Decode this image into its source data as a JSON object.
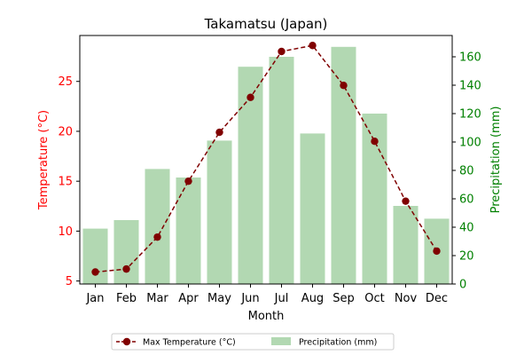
{
  "chart_data": {
    "type": "bar+line",
    "title": "Takamatsu (Japan)",
    "xlabel": "Month",
    "categories": [
      "Jan",
      "Feb",
      "Mar",
      "Apr",
      "May",
      "Jun",
      "Jul",
      "Aug",
      "Sep",
      "Oct",
      "Nov",
      "Dec"
    ],
    "series": [
      {
        "name": "Max Temperature (°C)",
        "type": "line",
        "axis": "left",
        "color": "#800000",
        "style": "dashed-with-markers",
        "values": [
          5.9,
          6.2,
          9.4,
          15.0,
          19.9,
          23.4,
          28.0,
          28.6,
          24.6,
          19.0,
          13.0,
          8.0
        ]
      },
      {
        "name": "Precipitation (mm)",
        "type": "bar",
        "axis": "right",
        "color": "#b2d8b2",
        "values": [
          39,
          45,
          81,
          75,
          101,
          153,
          160,
          106,
          167,
          120,
          55,
          46
        ]
      }
    ],
    "y_left": {
      "label": "Temperature (°C)",
      "color": "#ff0000",
      "ticks": [
        5,
        10,
        15,
        20,
        25
      ],
      "ylim": [
        4.7,
        29.6
      ]
    },
    "y_right": {
      "label": "Precipitation (mm)",
      "color": "#008000",
      "ticks": [
        0,
        20,
        40,
        60,
        80,
        100,
        120,
        140,
        160
      ],
      "ylim": [
        0,
        175
      ]
    },
    "legend": {
      "position": "bottom-center",
      "entries": [
        "Max Temperature (°C)",
        "Precipitation (mm)"
      ]
    },
    "grid": false
  }
}
